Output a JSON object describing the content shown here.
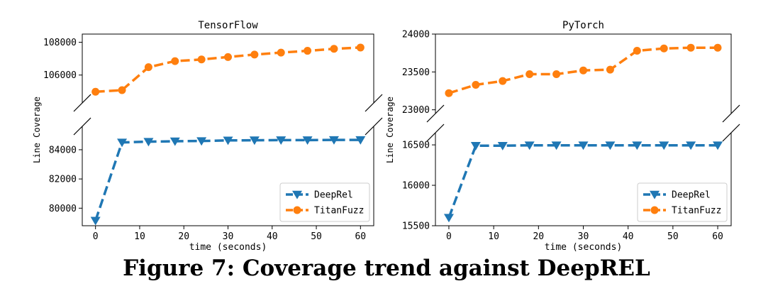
{
  "caption": "Figure 7: Coverage trend against DeepREL",
  "colors": {
    "deeprel": "#1f77b4",
    "titanfuzz": "#ff7f0e"
  },
  "chart_data": [
    {
      "type": "line",
      "title": "TensorFlow",
      "xlabel": "time (seconds)",
      "ylabel": "Line Coverage",
      "x": [
        0,
        6,
        12,
        18,
        24,
        30,
        36,
        42,
        48,
        54,
        60
      ],
      "xticks": [
        "0",
        "10",
        "20",
        "30",
        "40",
        "50",
        "60"
      ],
      "xlim": [
        -3,
        63
      ],
      "broken_axis": true,
      "upper": {
        "ylim": [
          104300,
          108500
        ],
        "yticks": [
          "106000",
          "108000"
        ]
      },
      "lower": {
        "ylim": [
          78800,
          85600
        ],
        "yticks": [
          "80000",
          "82000",
          "84000"
        ]
      },
      "series": [
        {
          "name": "DeepRel",
          "marker": "triangle-down",
          "panel": "lower",
          "values": [
            79150,
            84500,
            84550,
            84580,
            84600,
            84640,
            84650,
            84660,
            84660,
            84670,
            84670
          ]
        },
        {
          "name": "TitanFuzz",
          "marker": "circle",
          "panel": "upper",
          "values": [
            104980,
            105080,
            106480,
            106850,
            106950,
            107100,
            107250,
            107370,
            107480,
            107600,
            107680
          ]
        }
      ],
      "legend": "lower right"
    },
    {
      "type": "line",
      "title": "PyTorch",
      "xlabel": "time (seconds)",
      "ylabel": "Line Coverage",
      "x": [
        0,
        6,
        12,
        18,
        24,
        30,
        36,
        42,
        48,
        54,
        60
      ],
      "xticks": [
        "0",
        "10",
        "20",
        "30",
        "40",
        "50",
        "60"
      ],
      "xlim": [
        -3,
        63
      ],
      "broken_axis": true,
      "upper": {
        "ylim": [
          22950,
          24000
        ],
        "yticks": [
          "23000",
          "23500",
          "24000"
        ]
      },
      "lower": {
        "ylim": [
          15500,
          16650
        ],
        "yticks": [
          "15500",
          "16000",
          "16500"
        ]
      },
      "series": [
        {
          "name": "DeepRel",
          "marker": "triangle-down",
          "panel": "lower",
          "values": [
            15600,
            16490,
            16490,
            16495,
            16495,
            16495,
            16495,
            16495,
            16495,
            16495,
            16495
          ]
        },
        {
          "name": "TitanFuzz",
          "marker": "circle",
          "panel": "upper",
          "values": [
            23220,
            23330,
            23380,
            23470,
            23470,
            23520,
            23530,
            23780,
            23810,
            23820,
            23820
          ]
        }
      ],
      "legend": "lower right"
    }
  ]
}
